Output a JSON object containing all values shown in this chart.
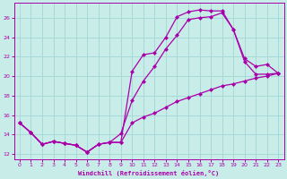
{
  "xlabel": "Windchill (Refroidissement éolien,°C)",
  "bg_color": "#c8ece8",
  "line_color": "#aa00aa",
  "grid_color": "#a8d8d8",
  "xlim": [
    -0.5,
    23.5
  ],
  "ylim": [
    11.5,
    27.5
  ],
  "yticks": [
    12,
    14,
    16,
    18,
    20,
    22,
    24,
    26
  ],
  "xticks": [
    0,
    1,
    2,
    3,
    4,
    5,
    6,
    7,
    8,
    9,
    10,
    11,
    12,
    13,
    14,
    15,
    16,
    17,
    18,
    19,
    20,
    21,
    22,
    23
  ],
  "series1_x": [
    0,
    1,
    2,
    3,
    4,
    5,
    6,
    7,
    8,
    9,
    10,
    11,
    12,
    13,
    14,
    15,
    16,
    17,
    18,
    19,
    20,
    21,
    22,
    23
  ],
  "series1_y": [
    15.2,
    14.2,
    13.0,
    13.3,
    13.1,
    12.9,
    12.2,
    13.0,
    13.2,
    13.2,
    20.5,
    22.2,
    22.4,
    24.0,
    26.1,
    26.6,
    26.8,
    26.7,
    26.7,
    24.8,
    21.5,
    20.2,
    20.2,
    20.3
  ],
  "series2_x": [
    0,
    1,
    2,
    3,
    4,
    5,
    6,
    7,
    8,
    9,
    10,
    11,
    12,
    13,
    14,
    15,
    16,
    17,
    18,
    19,
    20,
    21,
    22,
    23
  ],
  "series2_y": [
    15.2,
    14.2,
    13.0,
    13.3,
    13.1,
    12.9,
    12.2,
    13.0,
    13.2,
    14.1,
    17.5,
    19.5,
    21.0,
    22.8,
    24.2,
    25.8,
    26.0,
    26.1,
    26.5,
    24.8,
    21.8,
    21.0,
    21.2,
    20.3
  ],
  "series3_x": [
    0,
    1,
    2,
    3,
    4,
    5,
    6,
    7,
    8,
    9,
    10,
    11,
    12,
    13,
    14,
    15,
    16,
    17,
    18,
    19,
    20,
    21,
    22,
    23
  ],
  "series3_y": [
    15.2,
    14.2,
    13.0,
    13.3,
    13.1,
    12.9,
    12.2,
    13.0,
    13.2,
    13.2,
    15.2,
    15.8,
    16.2,
    16.8,
    17.4,
    17.8,
    18.2,
    18.6,
    19.0,
    19.2,
    19.5,
    19.8,
    20.0,
    20.3
  ]
}
